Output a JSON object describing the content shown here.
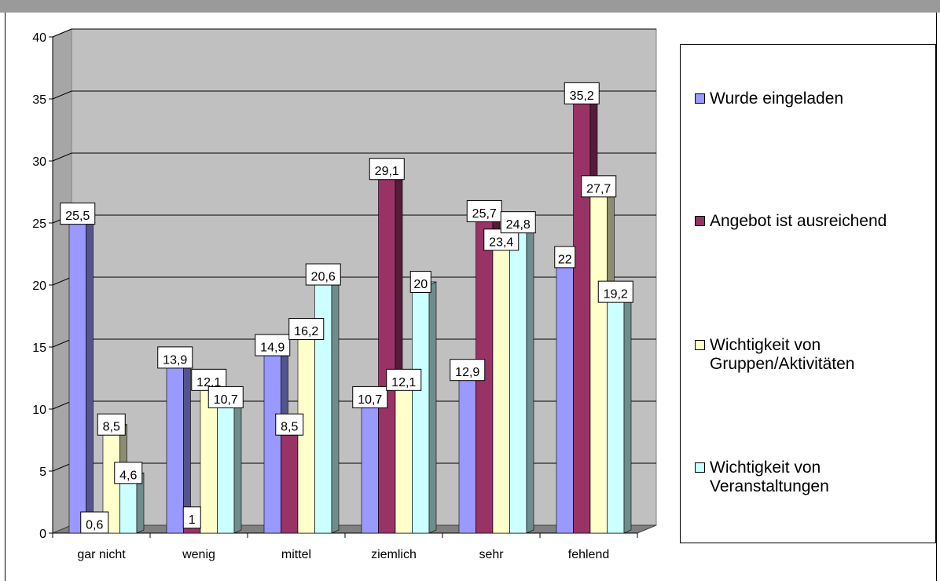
{
  "chart_data": {
    "type": "bar",
    "style": "3d-clustered",
    "categories": [
      "gar nicht",
      "wenig",
      "mittel",
      "ziemlich",
      "sehr",
      "fehlend"
    ],
    "ylim": [
      0,
      40
    ],
    "yticks": [
      0,
      5,
      10,
      15,
      20,
      25,
      30,
      35,
      40
    ],
    "grid": true,
    "legend": "right",
    "series": [
      {
        "name": "Wurde eingeladen",
        "color": "#9999ff",
        "values": [
          25.5,
          13.9,
          14.9,
          10.7,
          12.9,
          22
        ],
        "labels": [
          "25,5",
          "13,9",
          "14,9",
          "10,7",
          "12,9",
          "22"
        ]
      },
      {
        "name": "Angebot ist ausreichend",
        "color": "#993366",
        "values": [
          0.6,
          1,
          8.5,
          29.1,
          25.7,
          35.2
        ],
        "labels": [
          "0,6",
          "1",
          "8,5",
          "29,1",
          "25,7",
          "35,2"
        ]
      },
      {
        "name": "Wichtigkeit von Gruppen/Aktivitäten",
        "color": "#ffffcc",
        "values": [
          8.5,
          12.1,
          16.2,
          12.1,
          23.4,
          27.7
        ],
        "labels": [
          "8,5",
          "12,1",
          "16,2",
          "12,1",
          "23,4",
          "27,7"
        ]
      },
      {
        "name": "Wichtigkeit von Veranstaltungen",
        "color": "#ccffff",
        "values": [
          4.6,
          10.7,
          20.6,
          20,
          24.8,
          19.2
        ],
        "labels": [
          "4,6",
          "10,7",
          "20,6",
          "20",
          "24,8",
          "19,2"
        ]
      }
    ]
  }
}
